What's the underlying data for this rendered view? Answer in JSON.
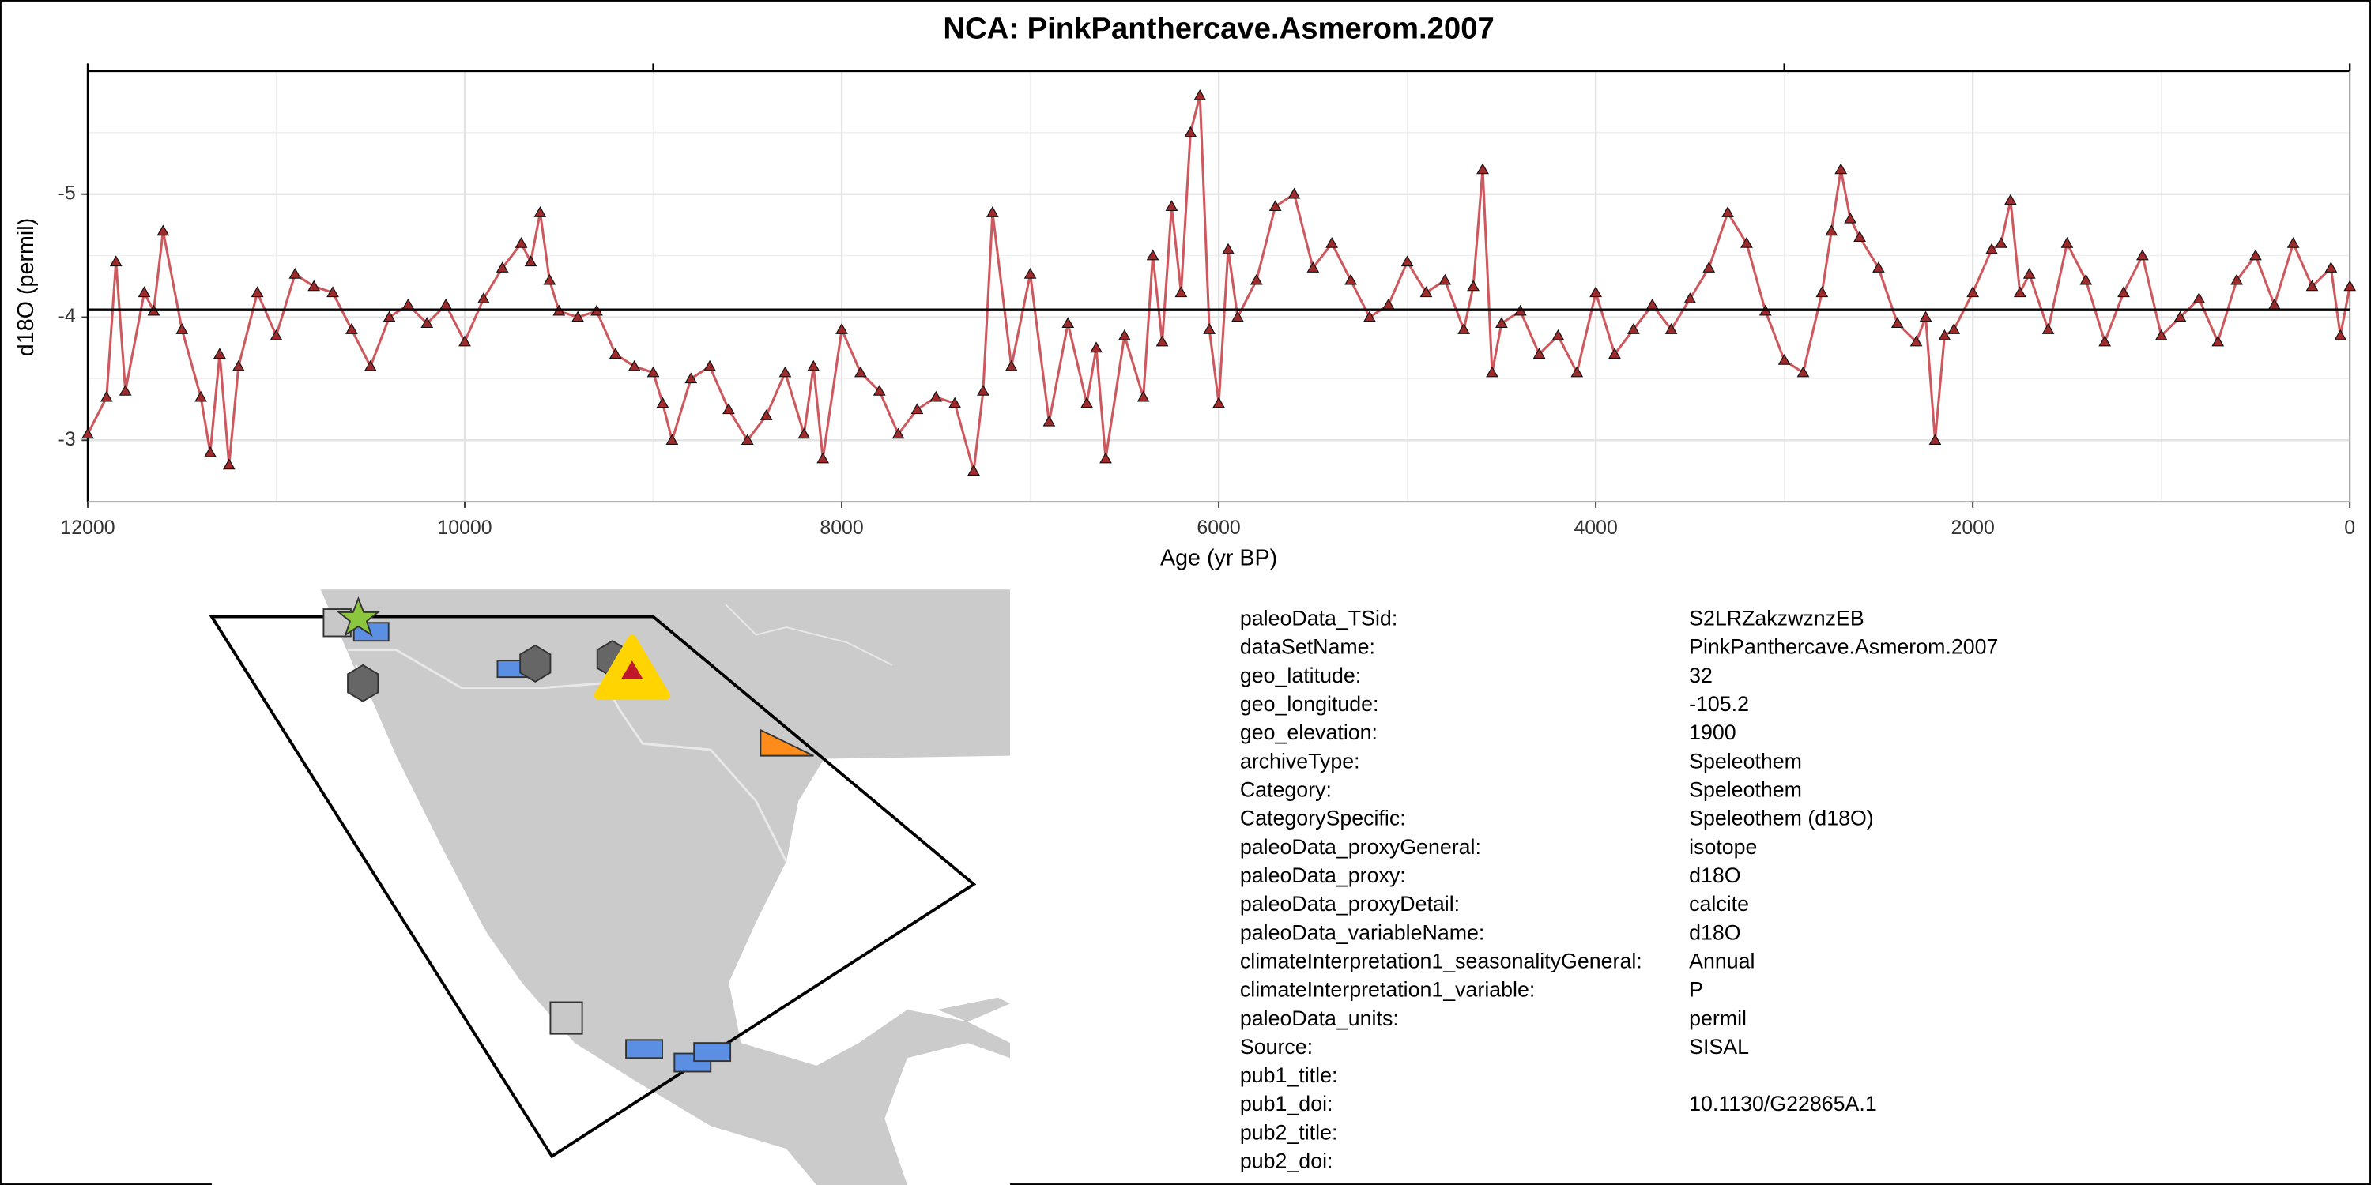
{
  "chart_data": {
    "type": "line",
    "title": "NCA: PinkPanthercave.Asmerom.2007",
    "x_label": "Age (yr BP)",
    "y_label": "d18O (permil)",
    "xlim": [
      12000,
      0
    ],
    "ylim": [
      -2.5,
      -6.0
    ],
    "xticks": [
      12000,
      10000,
      8000,
      6000,
      4000,
      2000,
      0
    ],
    "yticks": [
      -5,
      -4,
      -3
    ],
    "minor_xticks": [
      11000,
      9000,
      7000,
      5000,
      3000,
      1000
    ],
    "minor_yticks": [
      -5.5,
      -4.5,
      -3.5
    ],
    "x2ticks": [
      12000,
      9000,
      3000,
      0
    ],
    "grid": true,
    "color": "#c8474c",
    "marker_color": "#9e2a2b",
    "hline": -4.06,
    "x": [
      12000,
      11900,
      11850,
      11800,
      11700,
      11650,
      11600,
      11500,
      11400,
      11350,
      11300,
      11250,
      11200,
      11100,
      11000,
      10900,
      10800,
      10700,
      10600,
      10500,
      10400,
      10300,
      10200,
      10100,
      10000,
      9900,
      9800,
      9700,
      9650,
      9600,
      9550,
      9500,
      9400,
      9300,
      9200,
      9100,
      9000,
      8950,
      8900,
      8800,
      8700,
      8600,
      8500,
      8400,
      8300,
      8200,
      8150,
      8100,
      8000,
      7900,
      7800,
      7700,
      7600,
      7500,
      7400,
      7300,
      7250,
      7200,
      7100,
      7000,
      6900,
      6800,
      6700,
      6650,
      6600,
      6500,
      6400,
      6350,
      6300,
      6250,
      6200,
      6150,
      6100,
      6050,
      6000,
      5950,
      5900,
      5800,
      5700,
      5600,
      5500,
      5400,
      5300,
      5200,
      5100,
      5000,
      4900,
      4800,
      4700,
      4650,
      4600,
      4550,
      4500,
      4400,
      4300,
      4200,
      4100,
      4000,
      3900,
      3800,
      3700,
      3600,
      3500,
      3400,
      3300,
      3200,
      3100,
      3000,
      2900,
      2800,
      2750,
      2700,
      2650,
      2600,
      2500,
      2400,
      2300,
      2250,
      2200,
      2150,
      2100,
      2000,
      1900,
      1850,
      1800,
      1750,
      1700,
      1600,
      1500,
      1400,
      1300,
      1200,
      1100,
      1000,
      900,
      800,
      700,
      600,
      500,
      400,
      300,
      200,
      100,
      50,
      0
    ],
    "values": [
      -3.05,
      -3.35,
      -4.45,
      -3.4,
      -4.2,
      -4.05,
      -4.7,
      -3.9,
      -3.35,
      -2.9,
      -3.7,
      -2.8,
      -3.6,
      -4.2,
      -3.85,
      -4.35,
      -4.25,
      -4.2,
      -3.9,
      -3.6,
      -4.0,
      -4.1,
      -3.95,
      -4.1,
      -3.8,
      -4.15,
      -4.4,
      -4.6,
      -4.45,
      -4.85,
      -4.3,
      -4.05,
      -4.0,
      -4.05,
      -3.7,
      -3.6,
      -3.55,
      -3.3,
      -3.0,
      -3.5,
      -3.6,
      -3.25,
      -3.0,
      -3.2,
      -3.55,
      -3.05,
      -3.6,
      -2.85,
      -3.9,
      -3.55,
      -3.4,
      -3.05,
      -3.25,
      -3.35,
      -3.3,
      -2.75,
      -3.4,
      -4.85,
      -3.6,
      -4.35,
      -3.15,
      -3.95,
      -3.3,
      -3.75,
      -2.85,
      -3.85,
      -3.35,
      -4.5,
      -3.8,
      -4.9,
      -4.2,
      -5.5,
      -5.8,
      -3.9,
      -3.3,
      -4.55,
      -4.0,
      -4.3,
      -4.9,
      -5.0,
      -4.4,
      -4.6,
      -4.3,
      -4.0,
      -4.1,
      -4.45,
      -4.2,
      -4.3,
      -3.9,
      -4.25,
      -5.2,
      -3.55,
      -3.95,
      -4.05,
      -3.7,
      -3.85,
      -3.55,
      -4.2,
      -3.7,
      -3.9,
      -4.1,
      -3.9,
      -4.15,
      -4.4,
      -4.85,
      -4.6,
      -4.05,
      -3.65,
      -3.55,
      -4.2,
      -4.7,
      -5.2,
      -4.8,
      -4.65,
      -4.4,
      -3.95,
      -3.8,
      -4.0,
      -3.0,
      -3.85,
      -3.9,
      -4.2,
      -4.55,
      -4.6,
      -4.95,
      -4.2,
      -4.35,
      -3.9,
      -4.6,
      -4.3,
      -3.8,
      -4.2,
      -4.5,
      -3.85,
      -4.0,
      -4.15,
      -3.8,
      -4.3,
      -4.5,
      -4.1,
      -4.6,
      -4.25,
      -4.4,
      -3.85,
      -4.25
    ]
  },
  "metadata": {
    "rows": [
      [
        "paleoData_TSid:",
        "S2LRZakzwznzEB"
      ],
      [
        "dataSetName:",
        "PinkPanthercave.Asmerom.2007"
      ],
      [
        "geo_latitude:",
        "32"
      ],
      [
        "geo_longitude:",
        "-105.2"
      ],
      [
        "geo_elevation:",
        "1900"
      ],
      [
        "archiveType:",
        "Speleothem"
      ],
      [
        "Category:",
        "Speleothem"
      ],
      [
        "CategorySpecific:",
        "Speleothem (d18O)"
      ],
      [
        "paleoData_proxyGeneral:",
        "isotope"
      ],
      [
        "paleoData_proxy:",
        "d18O"
      ],
      [
        "paleoData_proxyDetail:",
        "calcite"
      ],
      [
        "paleoData_variableName:",
        "d18O"
      ],
      [
        "climateInterpretation1_seasonalityGeneral:",
        "Annual"
      ],
      [
        "climateInterpretation1_variable:",
        "P"
      ],
      [
        "paleoData_units:",
        "permil"
      ],
      [
        "Source:",
        "SISAL"
      ],
      [
        "pub1_title:"
      ],
      [
        "pub1_doi:",
        "10.1130/G22865A.1"
      ],
      [
        "pub2_title:"
      ],
      [
        "pub2_doi:"
      ]
    ]
  }
}
